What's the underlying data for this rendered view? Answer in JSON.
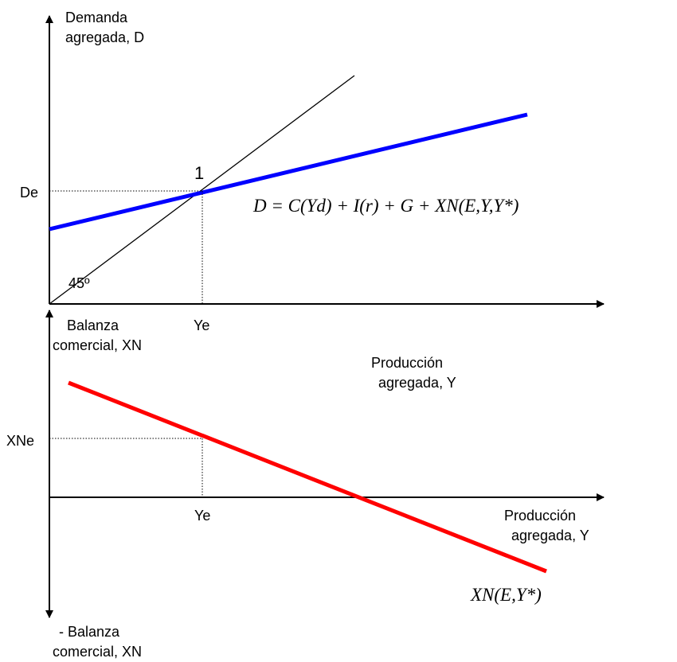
{
  "upper_panel": {
    "y_axis_label": [
      "Demanda",
      "agregada, D"
    ],
    "x_axis_label": [
      "Producción",
      "agregada, Y"
    ],
    "equilibrium_point_label": "1",
    "angle_label": "45º",
    "de_label": "De",
    "ye_label": "Ye",
    "demand_equation": "D = C(Yd) + I(r) + G + XN(E,Y,Y*)"
  },
  "lower_panel": {
    "y_axis_label_top": [
      "Balanza",
      "comercial, XN"
    ],
    "y_axis_label_bottom": [
      "- Balanza",
      "comercial, XN"
    ],
    "x_axis_label": [
      "Producción",
      "agregada, Y"
    ],
    "xne_label": "XNe",
    "ye_label": "Ye",
    "trade_balance_equation": "XN(E,Y*)"
  },
  "colors": {
    "demand_line": "#0000ff",
    "trade_balance_line": "#ff0000",
    "axes": "#000000",
    "dotted_guides": "#000000"
  }
}
